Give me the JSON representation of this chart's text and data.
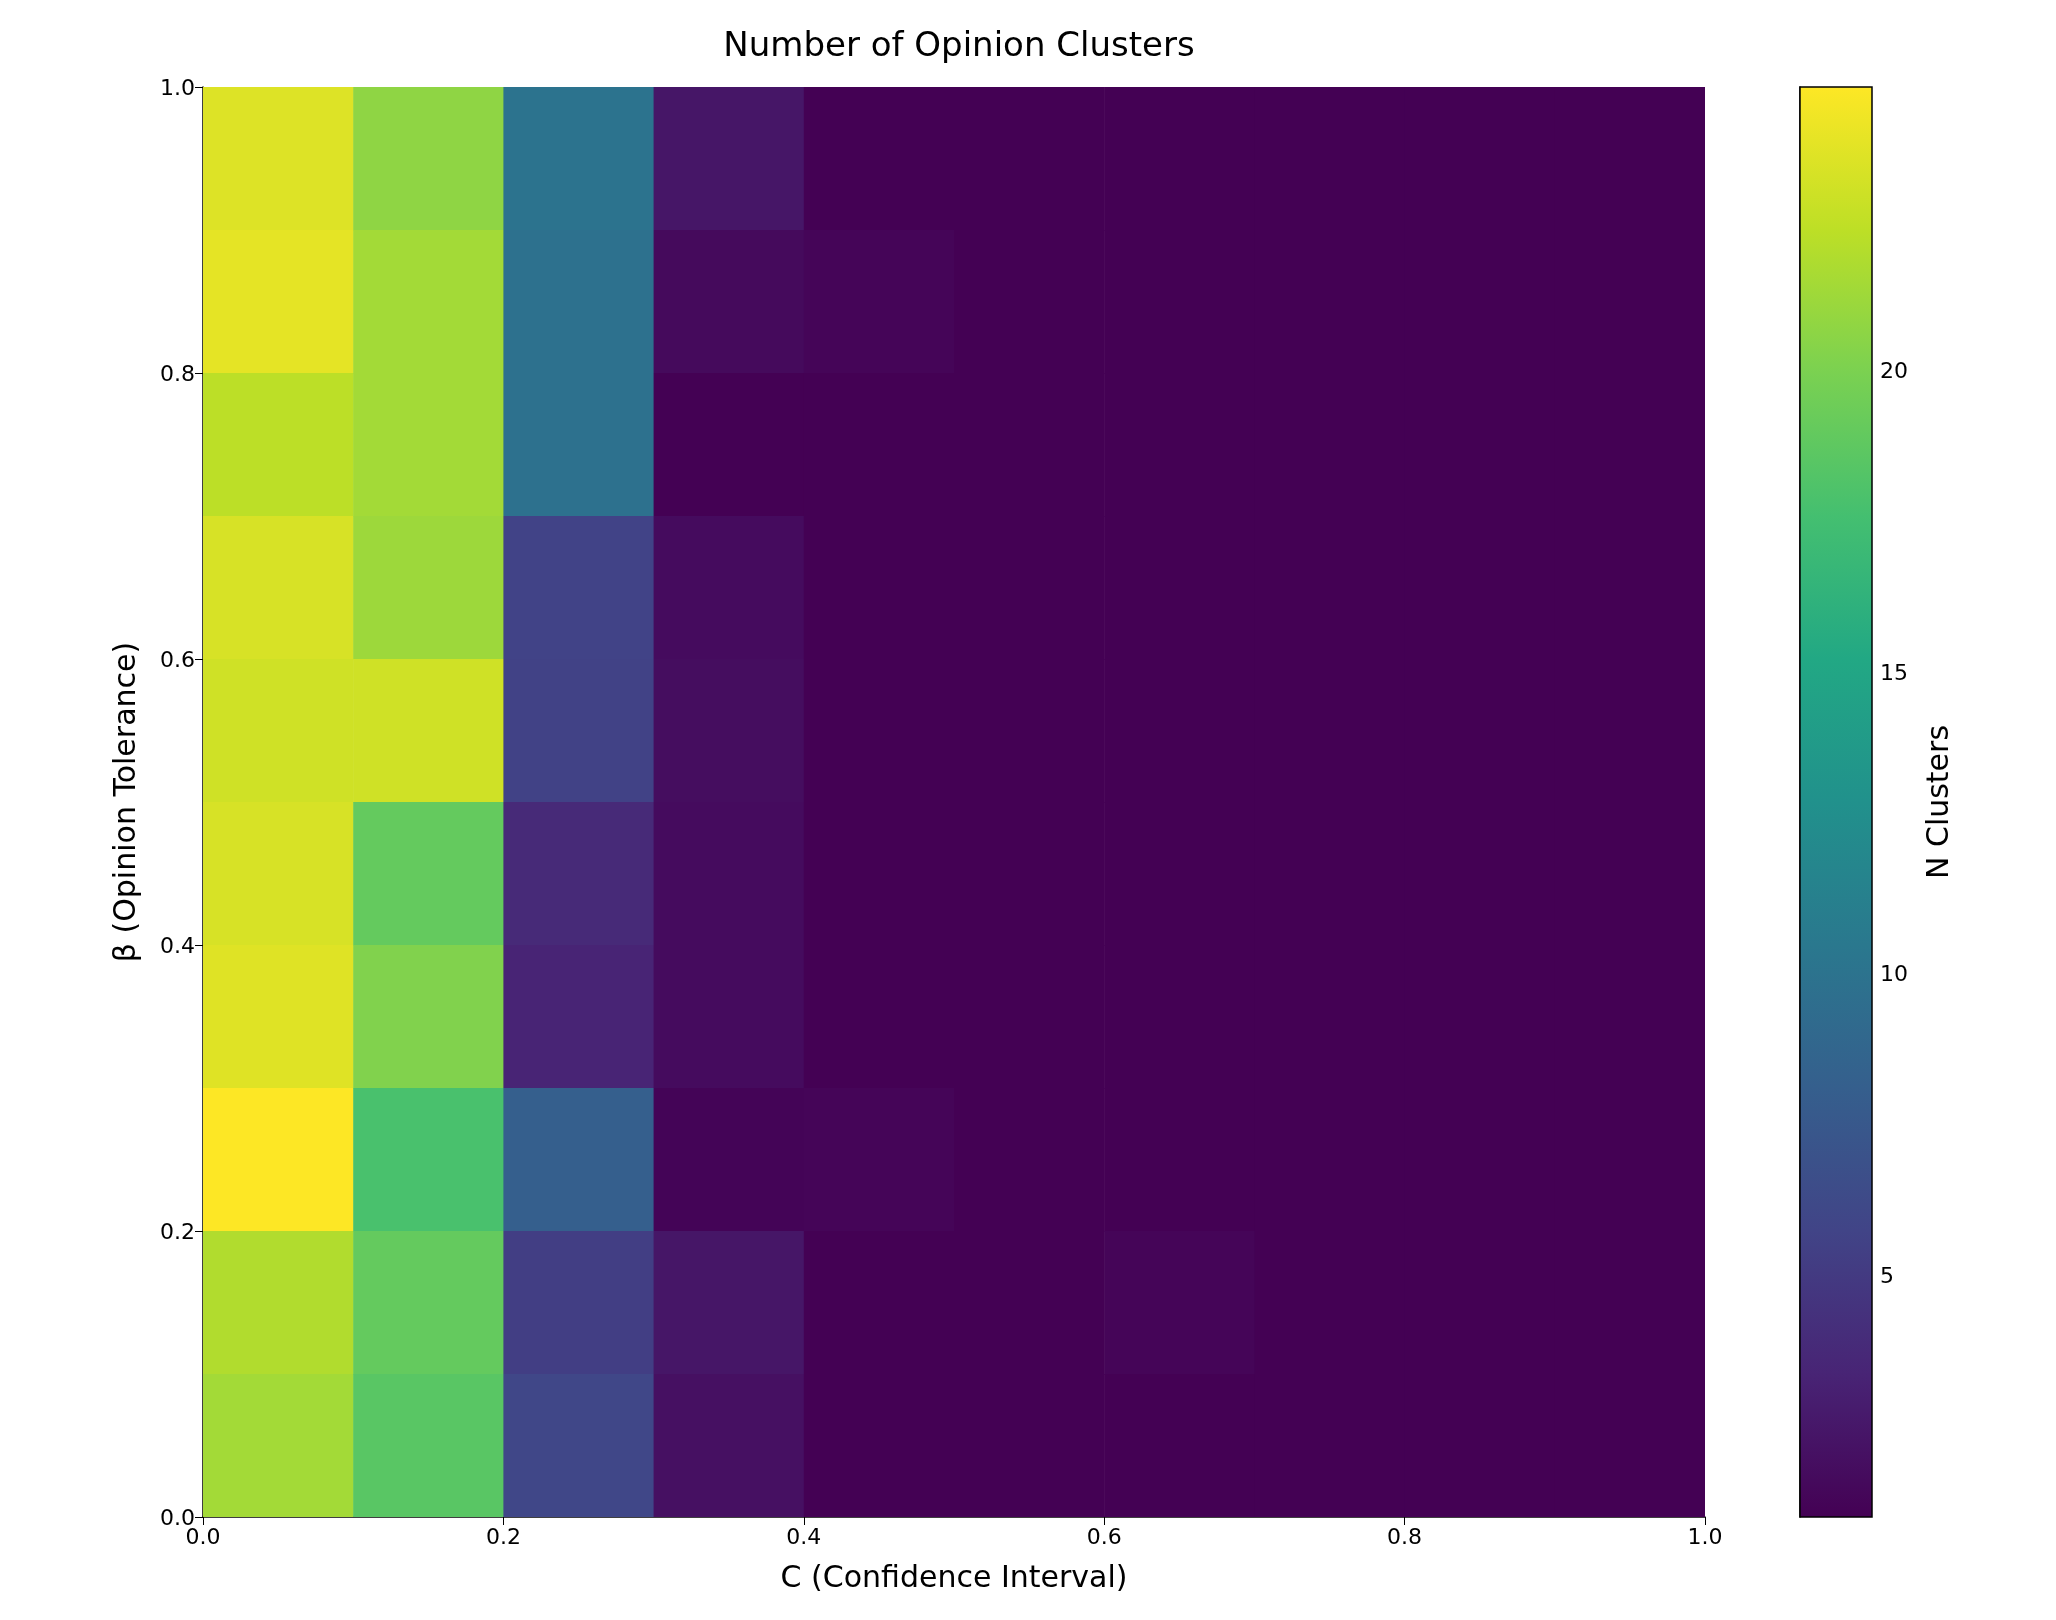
{
  "chart_data": {
    "type": "heatmap",
    "title": "Number of Opinion Clusters",
    "xlabel": "C (Confidence Interval)",
    "ylabel": "β (Opinion Tolerance)",
    "clabel": "N Clusters",
    "xlim": [
      0,
      1
    ],
    "xticks": [
      {
        "value": 0,
        "label": "0.0"
      },
      {
        "value": 0.2,
        "label": "0.2"
      },
      {
        "value": 0.4,
        "label": "0.4"
      },
      {
        "value": 0.6,
        "label": "0.6"
      },
      {
        "value": 0.8,
        "label": "0.8"
      },
      {
        "value": 1,
        "label": "1.0"
      }
    ],
    "ylim": [
      0,
      1
    ],
    "yticks": [
      {
        "value": 0,
        "label": "0.0"
      },
      {
        "value": 0.2,
        "label": "0.2"
      },
      {
        "value": 0.4,
        "label": "0.4"
      },
      {
        "value": 0.6,
        "label": "0.6"
      },
      {
        "value": 0.8,
        "label": "0.8"
      },
      {
        "value": 1,
        "label": "1.0"
      }
    ],
    "clim": [
      1,
      24.7
    ],
    "cticks": [
      5,
      10,
      15,
      20
    ],
    "cells": [
      [
        23.5,
        20.7,
        10,
        2.4,
        1,
        1,
        1,
        1,
        1,
        1
      ],
      [
        23.8,
        21.4,
        9.8,
        1.6,
        1.3,
        1,
        1,
        1,
        1,
        1
      ],
      [
        22.3,
        21.4,
        9.8,
        1,
        1,
        1,
        1,
        1,
        1,
        1
      ],
      [
        23.3,
        21.2,
        5.7,
        1.7,
        1,
        1,
        1,
        1,
        1,
        1
      ],
      [
        23,
        23,
        5.6,
        1.8,
        1,
        1,
        1,
        1,
        1,
        1
      ],
      [
        23.3,
        19,
        3.8,
        1.7,
        1,
        1,
        1,
        1,
        1,
        1
      ],
      [
        23.6,
        20.2,
        3.4,
        1.7,
        1,
        1,
        1,
        1,
        1,
        1
      ],
      [
        24.7,
        17.8,
        8.1,
        1.2,
        1.3,
        1,
        1,
        1,
        1,
        1
      ],
      [
        21.9,
        19,
        5.3,
        2.4,
        1,
        1,
        1.3,
        1,
        1,
        1
      ],
      [
        21.4,
        18.5,
        6,
        2,
        1,
        1,
        1,
        1,
        1,
        1
      ]
    ]
  }
}
